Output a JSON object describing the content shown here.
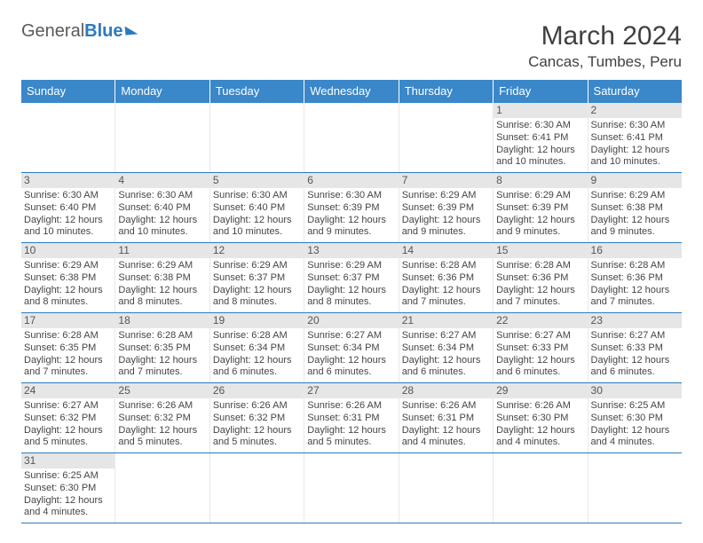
{
  "logo": {
    "part1": "General",
    "part2": "Blue"
  },
  "title": "March 2024",
  "location": "Cancas, Tumbes, Peru",
  "dayNames": [
    "Sunday",
    "Monday",
    "Tuesday",
    "Wednesday",
    "Thursday",
    "Friday",
    "Saturday"
  ],
  "colors": {
    "headerBg": "#3a87c9",
    "headerText": "#ffffff",
    "weekBorder": "#2b7bbf",
    "dayNumBg": "#e6e6e6",
    "text": "#454545"
  },
  "weeks": [
    [
      {
        "n": "",
        "sr": "",
        "ss": "",
        "dl": ""
      },
      {
        "n": "",
        "sr": "",
        "ss": "",
        "dl": ""
      },
      {
        "n": "",
        "sr": "",
        "ss": "",
        "dl": ""
      },
      {
        "n": "",
        "sr": "",
        "ss": "",
        "dl": ""
      },
      {
        "n": "",
        "sr": "",
        "ss": "",
        "dl": ""
      },
      {
        "n": "1",
        "sr": "Sunrise: 6:30 AM",
        "ss": "Sunset: 6:41 PM",
        "dl": "Daylight: 12 hours and 10 minutes."
      },
      {
        "n": "2",
        "sr": "Sunrise: 6:30 AM",
        "ss": "Sunset: 6:41 PM",
        "dl": "Daylight: 12 hours and 10 minutes."
      }
    ],
    [
      {
        "n": "3",
        "sr": "Sunrise: 6:30 AM",
        "ss": "Sunset: 6:40 PM",
        "dl": "Daylight: 12 hours and 10 minutes."
      },
      {
        "n": "4",
        "sr": "Sunrise: 6:30 AM",
        "ss": "Sunset: 6:40 PM",
        "dl": "Daylight: 12 hours and 10 minutes."
      },
      {
        "n": "5",
        "sr": "Sunrise: 6:30 AM",
        "ss": "Sunset: 6:40 PM",
        "dl": "Daylight: 12 hours and 10 minutes."
      },
      {
        "n": "6",
        "sr": "Sunrise: 6:30 AM",
        "ss": "Sunset: 6:39 PM",
        "dl": "Daylight: 12 hours and 9 minutes."
      },
      {
        "n": "7",
        "sr": "Sunrise: 6:29 AM",
        "ss": "Sunset: 6:39 PM",
        "dl": "Daylight: 12 hours and 9 minutes."
      },
      {
        "n": "8",
        "sr": "Sunrise: 6:29 AM",
        "ss": "Sunset: 6:39 PM",
        "dl": "Daylight: 12 hours and 9 minutes."
      },
      {
        "n": "9",
        "sr": "Sunrise: 6:29 AM",
        "ss": "Sunset: 6:38 PM",
        "dl": "Daylight: 12 hours and 9 minutes."
      }
    ],
    [
      {
        "n": "10",
        "sr": "Sunrise: 6:29 AM",
        "ss": "Sunset: 6:38 PM",
        "dl": "Daylight: 12 hours and 8 minutes."
      },
      {
        "n": "11",
        "sr": "Sunrise: 6:29 AM",
        "ss": "Sunset: 6:38 PM",
        "dl": "Daylight: 12 hours and 8 minutes."
      },
      {
        "n": "12",
        "sr": "Sunrise: 6:29 AM",
        "ss": "Sunset: 6:37 PM",
        "dl": "Daylight: 12 hours and 8 minutes."
      },
      {
        "n": "13",
        "sr": "Sunrise: 6:29 AM",
        "ss": "Sunset: 6:37 PM",
        "dl": "Daylight: 12 hours and 8 minutes."
      },
      {
        "n": "14",
        "sr": "Sunrise: 6:28 AM",
        "ss": "Sunset: 6:36 PM",
        "dl": "Daylight: 12 hours and 7 minutes."
      },
      {
        "n": "15",
        "sr": "Sunrise: 6:28 AM",
        "ss": "Sunset: 6:36 PM",
        "dl": "Daylight: 12 hours and 7 minutes."
      },
      {
        "n": "16",
        "sr": "Sunrise: 6:28 AM",
        "ss": "Sunset: 6:36 PM",
        "dl": "Daylight: 12 hours and 7 minutes."
      }
    ],
    [
      {
        "n": "17",
        "sr": "Sunrise: 6:28 AM",
        "ss": "Sunset: 6:35 PM",
        "dl": "Daylight: 12 hours and 7 minutes."
      },
      {
        "n": "18",
        "sr": "Sunrise: 6:28 AM",
        "ss": "Sunset: 6:35 PM",
        "dl": "Daylight: 12 hours and 7 minutes."
      },
      {
        "n": "19",
        "sr": "Sunrise: 6:28 AM",
        "ss": "Sunset: 6:34 PM",
        "dl": "Daylight: 12 hours and 6 minutes."
      },
      {
        "n": "20",
        "sr": "Sunrise: 6:27 AM",
        "ss": "Sunset: 6:34 PM",
        "dl": "Daylight: 12 hours and 6 minutes."
      },
      {
        "n": "21",
        "sr": "Sunrise: 6:27 AM",
        "ss": "Sunset: 6:34 PM",
        "dl": "Daylight: 12 hours and 6 minutes."
      },
      {
        "n": "22",
        "sr": "Sunrise: 6:27 AM",
        "ss": "Sunset: 6:33 PM",
        "dl": "Daylight: 12 hours and 6 minutes."
      },
      {
        "n": "23",
        "sr": "Sunrise: 6:27 AM",
        "ss": "Sunset: 6:33 PM",
        "dl": "Daylight: 12 hours and 6 minutes."
      }
    ],
    [
      {
        "n": "24",
        "sr": "Sunrise: 6:27 AM",
        "ss": "Sunset: 6:32 PM",
        "dl": "Daylight: 12 hours and 5 minutes."
      },
      {
        "n": "25",
        "sr": "Sunrise: 6:26 AM",
        "ss": "Sunset: 6:32 PM",
        "dl": "Daylight: 12 hours and 5 minutes."
      },
      {
        "n": "26",
        "sr": "Sunrise: 6:26 AM",
        "ss": "Sunset: 6:32 PM",
        "dl": "Daylight: 12 hours and 5 minutes."
      },
      {
        "n": "27",
        "sr": "Sunrise: 6:26 AM",
        "ss": "Sunset: 6:31 PM",
        "dl": "Daylight: 12 hours and 5 minutes."
      },
      {
        "n": "28",
        "sr": "Sunrise: 6:26 AM",
        "ss": "Sunset: 6:31 PM",
        "dl": "Daylight: 12 hours and 4 minutes."
      },
      {
        "n": "29",
        "sr": "Sunrise: 6:26 AM",
        "ss": "Sunset: 6:30 PM",
        "dl": "Daylight: 12 hours and 4 minutes."
      },
      {
        "n": "30",
        "sr": "Sunrise: 6:25 AM",
        "ss": "Sunset: 6:30 PM",
        "dl": "Daylight: 12 hours and 4 minutes."
      }
    ],
    [
      {
        "n": "31",
        "sr": "Sunrise: 6:25 AM",
        "ss": "Sunset: 6:30 PM",
        "dl": "Daylight: 12 hours and 4 minutes."
      },
      {
        "n": "",
        "sr": "",
        "ss": "",
        "dl": ""
      },
      {
        "n": "",
        "sr": "",
        "ss": "",
        "dl": ""
      },
      {
        "n": "",
        "sr": "",
        "ss": "",
        "dl": ""
      },
      {
        "n": "",
        "sr": "",
        "ss": "",
        "dl": ""
      },
      {
        "n": "",
        "sr": "",
        "ss": "",
        "dl": ""
      },
      {
        "n": "",
        "sr": "",
        "ss": "",
        "dl": ""
      }
    ]
  ]
}
